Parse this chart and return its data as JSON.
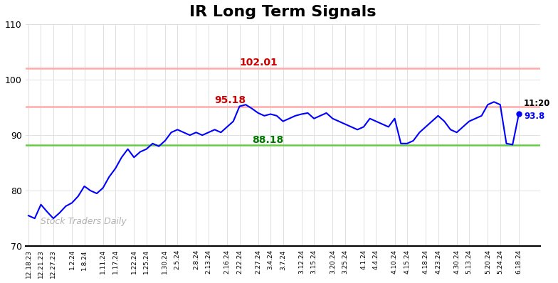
{
  "title": "IR Long Term Signals",
  "title_fontsize": 16,
  "title_fontweight": "bold",
  "ylim": [
    70,
    110
  ],
  "yticks": [
    70,
    80,
    90,
    100,
    110
  ],
  "line_color": "blue",
  "line_width": 1.5,
  "red_line1": 102.01,
  "red_line2": 95.18,
  "green_line": 88.18,
  "red_line_color": "#ffaaaa",
  "green_line_color": "#66cc44",
  "annotation_102": "102.01",
  "annotation_95": "95.18",
  "annotation_88": "88.18",
  "annotation_color_red": "#cc0000",
  "annotation_color_green": "#007700",
  "last_label": "11:20",
  "last_value": "93.8",
  "watermark": "Stock Traders Daily",
  "watermark_color": "#aaaaaa",
  "background_color": "#ffffff",
  "x_labels": [
    "12.18.23",
    "12.21.23",
    "12.27.23",
    "1.2.24",
    "1.8.24",
    "1.11.24",
    "1.17.24",
    "1.22.24",
    "1.25.24",
    "1.30.24",
    "2.5.24",
    "2.8.24",
    "2.13.24",
    "2.16.24",
    "2.22.24",
    "2.27.24",
    "3.4.24",
    "3.7.24",
    "3.12.24",
    "3.15.24",
    "3.20.24",
    "3.25.24",
    "4.1.24",
    "4.4.24",
    "4.10.24",
    "4.15.24",
    "4.18.24",
    "4.23.24",
    "4.30.24",
    "5.13.24",
    "5.20.24",
    "5.24.24",
    "6.18.24"
  ],
  "y_values": [
    75.5,
    75.0,
    77.5,
    76.2,
    75.0,
    76.0,
    77.2,
    77.8,
    79.0,
    80.8,
    80.0,
    79.5,
    80.5,
    82.5,
    84.0,
    86.0,
    87.5,
    86.0,
    87.0,
    87.5,
    88.5,
    88.0,
    89.0,
    90.5,
    91.0,
    90.5,
    90.0,
    90.5,
    90.0,
    90.5,
    91.0,
    90.5,
    91.5,
    92.5,
    95.2,
    95.5,
    94.8,
    94.0,
    93.5,
    93.8,
    93.5,
    92.5,
    93.0,
    93.5,
    93.8,
    94.0,
    93.0,
    93.5,
    94.0,
    93.0,
    92.5,
    92.0,
    91.5,
    91.0,
    91.5,
    93.0,
    92.5,
    92.0,
    91.5,
    93.0,
    88.5,
    88.5,
    89.0,
    90.5,
    91.5,
    92.5,
    93.5,
    92.5,
    91.0,
    90.5,
    91.5,
    92.5,
    93.0,
    93.5,
    95.5,
    96.0,
    95.5,
    88.5,
    88.3,
    93.8
  ],
  "figwidth": 7.84,
  "figheight": 3.98,
  "dpi": 100
}
